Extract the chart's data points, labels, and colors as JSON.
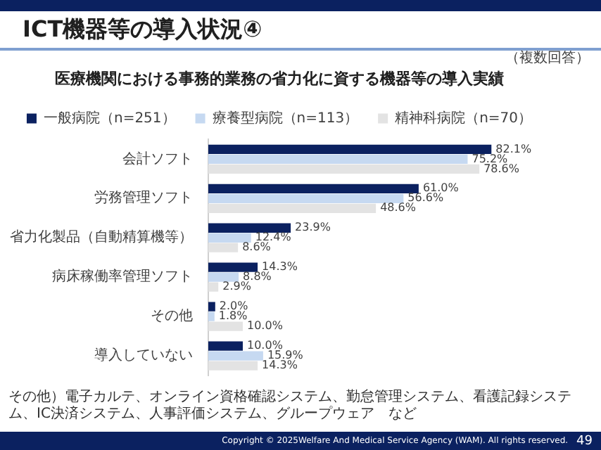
{
  "chart_data": {
    "type": "bar",
    "orientation": "horizontal",
    "title": "ICT機器等の導入状況④",
    "subtitle": "医療機関における事務的業務の省力化に資する機器等の導入実績",
    "categories": [
      "会計ソフト",
      "労務管理ソフト",
      "省力化製品（自動精算機等）",
      "病床稼働率管理ソフト",
      "その他",
      "導入していない"
    ],
    "series": [
      {
        "name": "一般病院（n=251）",
        "color": "#0b2160",
        "values": [
          82.1,
          61.0,
          23.9,
          14.3,
          2.0,
          10.0
        ],
        "value_labels": [
          "82.1%",
          "61.0%",
          "23.9%",
          "14.3%",
          "2.0%",
          "10.0%"
        ]
      },
      {
        "name": "療養型病院（n=113）",
        "color": "#c6d9f1",
        "values": [
          75.2,
          56.6,
          12.4,
          8.8,
          1.8,
          15.9
        ],
        "value_labels": [
          "75.2%",
          "56.6%",
          "12.4%",
          "8.8%",
          "1.8%",
          "15.9%"
        ]
      },
      {
        "name": "精神科病院（n=70）",
        "color": "#e3e3e3",
        "values": [
          78.6,
          48.6,
          8.6,
          2.9,
          10.0,
          14.3
        ],
        "value_labels": [
          "78.6%",
          "48.6%",
          "8.6%",
          "2.9%",
          "10.0%",
          "14.3%"
        ]
      }
    ],
    "legend": "top",
    "annotations": [
      "（複数回答）",
      "その他）電子カルテ、オンライン資格確認システム、勤怠管理システム、看護記録システム、IC決済システム、人事評価システム、グループウェア　など",
      "Copyright © 2025Welfare And Medical Service Agency (WAM). All rights reserved.",
      "49"
    ]
  }
}
